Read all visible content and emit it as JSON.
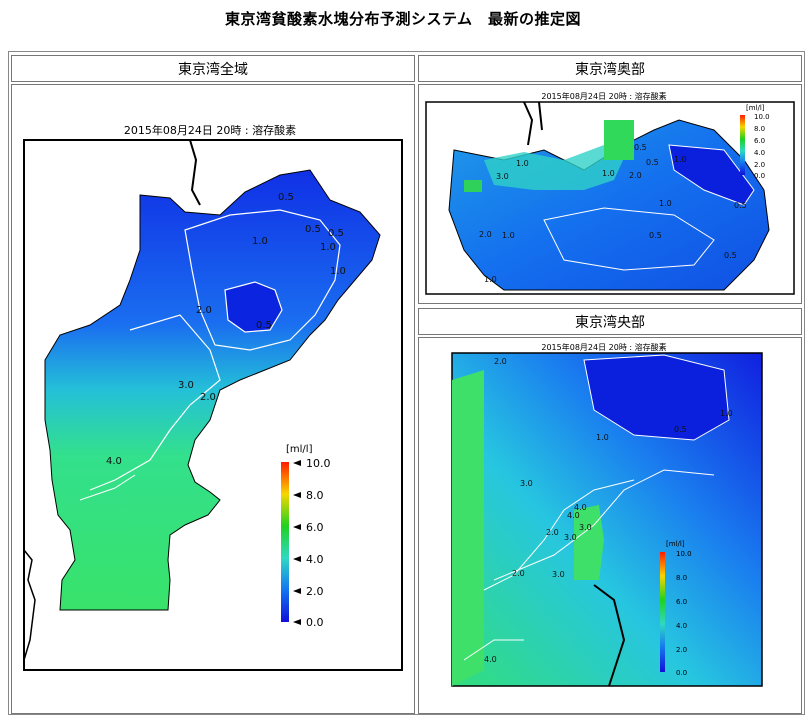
{
  "page": {
    "title": "東京湾貧酸素水塊分布予測システム　最新の推定図"
  },
  "panels": {
    "whole_bay": {
      "header": "東京湾全域",
      "caption": "2015年08月24日 20時 : 溶存酸素",
      "contour_labels": [
        "0.5",
        "1.0",
        "1.0",
        "1.0",
        "0.5",
        "0.5",
        "2.0",
        "0.5",
        "3.0",
        "2.0",
        "4.0"
      ]
    },
    "inner_bay": {
      "header": "東京湾奥部",
      "caption": "2015年08月24日 20時 : 溶存酸素",
      "contour_labels": [
        "1.0",
        "3.0",
        "2.0",
        "1.0",
        "1.0",
        "0.5",
        "0.5",
        "2.0",
        "1.0",
        "0.5",
        "1.0",
        "0.5",
        "0.5",
        "1.0"
      ]
    },
    "central_bay": {
      "header": "東京湾央部",
      "caption": "2015年08月24日 20時 : 溶存酸素",
      "contour_labels": [
        "2.0",
        "0.5",
        "1.0",
        "1.0",
        "3.0",
        "4.0",
        "2.0",
        "3.0",
        "3.0",
        "4.0",
        "2.0",
        "3.0",
        "4.0"
      ]
    }
  },
  "legend": {
    "unit": "[ml/l]",
    "ticks": [
      "10.0",
      "8.0",
      "6.0",
      "4.0",
      "2.0",
      "0.0"
    ],
    "colors": [
      "#ff1c00",
      "#f7d600",
      "#1fd21f",
      "#2fd9c4",
      "#1475f0",
      "#1010d8"
    ]
  },
  "colors": {
    "sea_deep": "#1428e0",
    "sea_mid": "#1b7cee",
    "sea_shallow": "#29c7e8",
    "shelf": "#34e07a",
    "land": "#ffffff",
    "contour": "#ffffff"
  }
}
